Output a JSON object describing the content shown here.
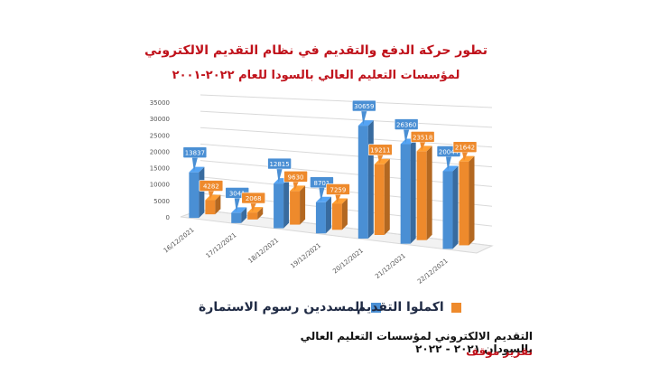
{
  "header": {
    "title": "تطور حركة الدفع والتقديم في نظام التقديم الالكتروني",
    "subtitle": "لمؤسسات التعليم العالي بالسودا للعام ٢٠٢٢-٢٠٠١"
  },
  "footer": {
    "line1": "التقديم الالكتروني لمؤسسات التعليم العالي بالسودان ٢٠٢١ - ٢٠٢٢",
    "line2": "تقرير موقف"
  },
  "chart_data": {
    "type": "bar",
    "categories": [
      "16/12/2021",
      "17/12/2021",
      "18/12/2021",
      "19/12/2021",
      "20/12/2021",
      "21/12/2021",
      "22/12/2021"
    ],
    "series": [
      {
        "name": "المسددين رسوم الاستمارة",
        "values": [
          13837,
          3041,
          12815,
          8701,
          30659,
          26360,
          20044
        ],
        "color": "#4a8fd4"
      },
      {
        "name": "اكملوا التقديم",
        "values": [
          4282,
          2068,
          9630,
          7259,
          19211,
          23518,
          21642
        ],
        "color": "#ee8a2c"
      }
    ],
    "yticks": [
      0,
      5000,
      10000,
      15000,
      20000,
      25000,
      30000,
      35000
    ],
    "ylim": [
      0,
      35000
    ],
    "grid": true,
    "legend_position": "bottom"
  }
}
